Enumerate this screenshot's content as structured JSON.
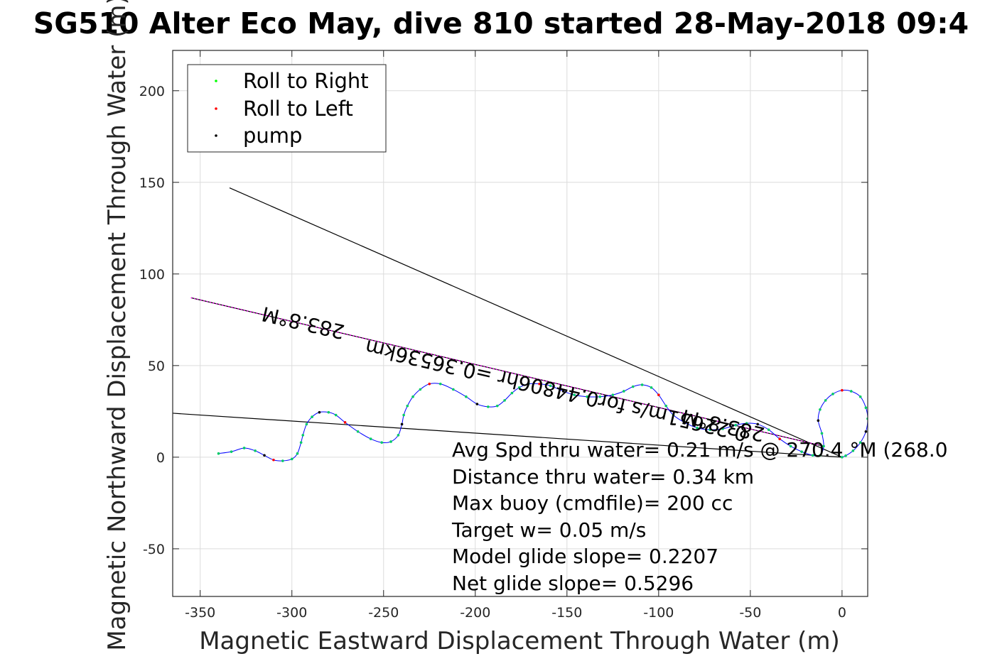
{
  "chart_data": {
    "type": "scatter",
    "title": "SG510 Alter Eco May, dive 810 started 28-May-2018 09:4",
    "xlabel": "Magnetic Eastward Displacement Through Water (m)",
    "ylabel": "Magnetic Northward Displacement Through Water (m)",
    "xlim": [
      -365,
      14
    ],
    "ylim": [
      -76,
      222
    ],
    "xticks": [
      -350,
      -300,
      -250,
      -200,
      -150,
      -100,
      -50,
      0
    ],
    "yticks": [
      -50,
      0,
      50,
      100,
      150,
      200
    ],
    "grid": true,
    "legend_position": "top-left",
    "legend": [
      {
        "label": "Roll to Right",
        "color": "#00ff00"
      },
      {
        "label": "Roll to Left",
        "color": "#ff0000"
      },
      {
        "label": "pump",
        "color": "#000000"
      }
    ],
    "colors": {
      "track": "#0000ff",
      "vector": "#000000",
      "heading": "#ff00ff"
    },
    "track": [
      [
        -340,
        2
      ],
      [
        -333,
        3
      ],
      [
        -326,
        5
      ],
      [
        -320,
        3.5
      ],
      [
        -315,
        1
      ],
      [
        -310,
        -1.5
      ],
      [
        -305,
        -2
      ],
      [
        -300,
        -1
      ],
      [
        -297,
        2
      ],
      [
        -295,
        8
      ],
      [
        -294,
        12
      ],
      [
        -292,
        18
      ],
      [
        -289,
        22
      ],
      [
        -285,
        24.5
      ],
      [
        -280,
        24.5
      ],
      [
        -276,
        23
      ],
      [
        -271,
        19
      ],
      [
        -264,
        14
      ],
      [
        -257,
        10
      ],
      [
        -251,
        8
      ],
      [
        -246,
        8.5
      ],
      [
        -242,
        12
      ],
      [
        -240,
        18
      ],
      [
        -239,
        23
      ],
      [
        -237,
        28
      ],
      [
        -234,
        33
      ],
      [
        -230,
        37
      ],
      [
        -225,
        40
      ],
      [
        -219,
        40
      ],
      [
        -212,
        37
      ],
      [
        -205,
        33
      ],
      [
        -199,
        29
      ],
      [
        -193,
        27.5
      ],
      [
        -188,
        28
      ],
      [
        -184,
        31
      ],
      [
        -180,
        35
      ],
      [
        -176,
        38
      ],
      [
        -171,
        40
      ],
      [
        -165,
        40
      ],
      [
        -159,
        39
      ],
      [
        -152,
        36
      ],
      [
        -146,
        34
      ],
      [
        -139,
        33
      ],
      [
        -132,
        33
      ],
      [
        -125,
        34
      ],
      [
        -119,
        36
      ],
      [
        -114,
        38.5
      ],
      [
        -109,
        39.5
      ],
      [
        -104,
        38
      ],
      [
        -100,
        34
      ],
      [
        -96,
        28
      ],
      [
        -92,
        23
      ],
      [
        -86,
        19
      ],
      [
        -79,
        16
      ],
      [
        -72,
        15
      ],
      [
        -65,
        15.5
      ],
      [
        -58,
        17.5
      ],
      [
        -52,
        18.5
      ],
      [
        -46,
        18
      ],
      [
        -40,
        15
      ],
      [
        -34,
        10
      ],
      [
        -28,
        6
      ],
      [
        -22,
        3
      ],
      [
        -16,
        1
      ],
      [
        -12,
        1
      ],
      [
        -10,
        6
      ],
      [
        -11,
        13
      ],
      [
        -13,
        20
      ],
      [
        -12,
        26
      ],
      [
        -9,
        31
      ],
      [
        -5,
        34.5
      ],
      [
        0,
        36.5
      ],
      [
        5,
        36
      ],
      [
        10,
        33
      ],
      [
        13,
        27
      ],
      [
        14,
        21
      ],
      [
        13,
        14
      ],
      [
        10,
        8
      ],
      [
        6,
        3.5
      ],
      [
        2,
        0.8
      ],
      [
        0,
        0
      ]
    ],
    "vectors": [
      {
        "from": [
          0,
          0
        ],
        "to": [
          -334,
          147
        ]
      },
      {
        "from": [
          0,
          0
        ],
        "to": [
          -365,
          24
        ]
      }
    ],
    "heading_line": {
      "from": [
        -355,
        87
      ],
      "to": [
        -10,
        6
      ]
    },
    "line_labels": [
      {
        "text": "283.8°M",
        "at": [
          -293,
          77
        ]
      },
      {
        "text": "0.22651m/s for0.44806hr =0.36536km",
        "at": [
          -155,
          40
        ]
      },
      {
        "text": "283.8°M",
        "at": [
          -64,
          21
        ]
      }
    ],
    "annotations": [
      "Avg Spd thru water=  0.21 m/s @ 270.4 °M (268.0",
      "Distance thru water=  0.34 km",
      "Max buoy (cmdfile)= 200 cc",
      "Target w= 0.05 m/s",
      "Model glide slope= 0.2207",
      "Net glide slope= 0.5296"
    ]
  }
}
